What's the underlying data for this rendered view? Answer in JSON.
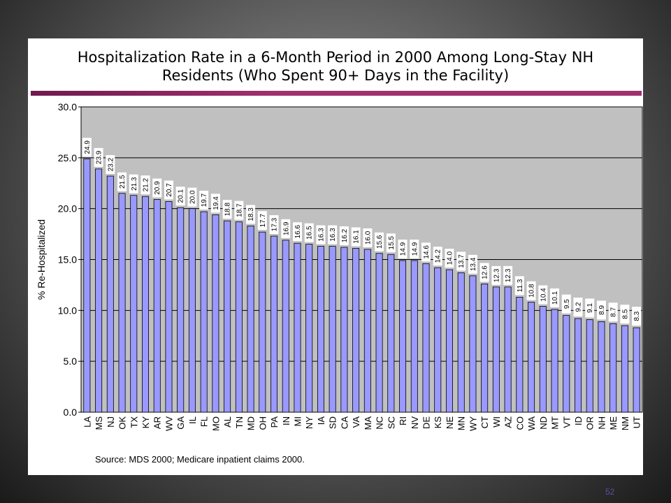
{
  "slide": {
    "title_line1": "Hospitalization Rate in a 6-Month Period in 2000 Among Long-Stay NH",
    "title_line2": "Residents (Who Spent 90+ Days in the Facility)",
    "source": "Source: MDS 2000; Medicare inpatient claims 2000.",
    "slide_number": "52"
  },
  "colors": {
    "bar_fill": "#9999ff",
    "bar_stroke": "#000000",
    "plot_background": "#c0c0c0",
    "title_rule": "#a0306e"
  },
  "chart_data": {
    "type": "bar",
    "title": "Hospitalization Rate in a 6-Month Period in 2000 Among Long-Stay NH Residents (Who Spent 90+ Days in the Facility)",
    "xlabel": "",
    "ylabel": "% Re-Hospitalized",
    "ylim": [
      0,
      30
    ],
    "yticks": [
      "0.0",
      "5.0",
      "10.0",
      "15.0",
      "20.0",
      "25.0",
      "30.0"
    ],
    "grid": true,
    "legend": "none",
    "categories": [
      "LA",
      "MS",
      "NJ",
      "OK",
      "TX",
      "KY",
      "AR",
      "WV",
      "GA",
      "IL",
      "FL",
      "MO",
      "AL",
      "TN",
      "MD",
      "OH",
      "PA",
      "IN",
      "MI",
      "NY",
      "IA",
      "SD",
      "CA",
      "VA",
      "MA",
      "NC",
      "SC",
      "RI",
      "NV",
      "DE",
      "KS",
      "NE",
      "MN",
      "WY",
      "CT",
      "WI",
      "AZ",
      "CO",
      "WA",
      "ND",
      "MT",
      "VT",
      "ID",
      "OR",
      "NH",
      "ME",
      "NM",
      "UT"
    ],
    "values": [
      24.9,
      23.9,
      23.2,
      21.5,
      21.3,
      21.2,
      20.9,
      20.7,
      20.1,
      20.0,
      19.7,
      19.4,
      18.8,
      18.7,
      18.3,
      17.7,
      17.3,
      16.9,
      16.6,
      16.5,
      16.3,
      16.3,
      16.2,
      16.1,
      16.0,
      15.6,
      15.5,
      14.9,
      14.9,
      14.6,
      14.2,
      14.0,
      13.7,
      13.4,
      12.6,
      12.3,
      12.3,
      11.3,
      10.8,
      10.4,
      10.1,
      9.5,
      9.2,
      9.1,
      8.9,
      8.7,
      8.5,
      8.3
    ],
    "data_labels": [
      "24.9",
      "23.9",
      "23.2",
      "21.5",
      "21.3",
      "21.2",
      "20.9",
      "20.7",
      "20.1",
      "20.0",
      "19.7",
      "19.4",
      "18.8",
      "18.7",
      "18.3",
      "17.7",
      "17.3",
      "16.9",
      "16.6",
      "16.5",
      "16.3",
      "16.3",
      "16.2",
      "16.1",
      "16.0",
      "15.6",
      "15.5",
      "14.9",
      "14.9",
      "14.6",
      "14.2",
      "14.0",
      "13.7",
      "13.4",
      "12.6",
      "12.3",
      "12.3",
      "11.3",
      "10.8",
      "10.4",
      "10.1",
      "9.5",
      "9.2",
      "9.1",
      "8.9",
      "8.7",
      "8.5",
      "8.3"
    ]
  }
}
